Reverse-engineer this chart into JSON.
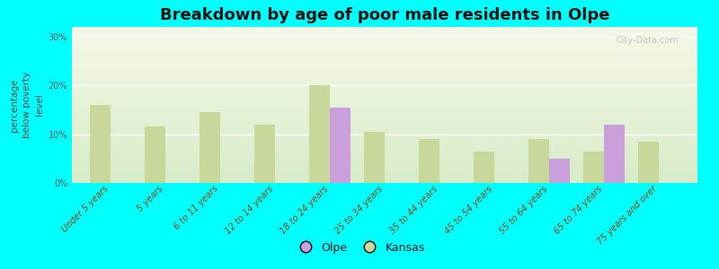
{
  "title": "Breakdown by age of poor male residents in Olpe",
  "ylabel": "percentage\nbelow poverty\nlevel",
  "categories": [
    "Under 5 years",
    "5 years",
    "6 to 11 years",
    "12 to 14 years",
    "18 to 24 years",
    "25 to 34 years",
    "35 to 44 years",
    "45 to 54 years",
    "55 to 64 years",
    "65 to 74 years",
    "75 years and over"
  ],
  "olpe": [
    0,
    0,
    0,
    0,
    15.5,
    0,
    0,
    0,
    5.0,
    12.0,
    0
  ],
  "kansas": [
    16.0,
    11.5,
    14.5,
    12.0,
    20.0,
    10.5,
    9.0,
    6.5,
    9.0,
    6.5,
    8.5
  ],
  "olpe_color": "#c9a0dc",
  "kansas_color": "#c8d89a",
  "bg_outer": "#00ffff",
  "ylim": [
    0,
    32
  ],
  "yticks": [
    0,
    10,
    20,
    30
  ],
  "ytick_labels": [
    "0%",
    "10%",
    "20%",
    "30%"
  ],
  "bar_width": 0.38,
  "title_fontsize": 13,
  "axis_label_fontsize": 7.5,
  "tick_fontsize": 7,
  "legend_fontsize": 9,
  "watermark": "City-Data.com"
}
